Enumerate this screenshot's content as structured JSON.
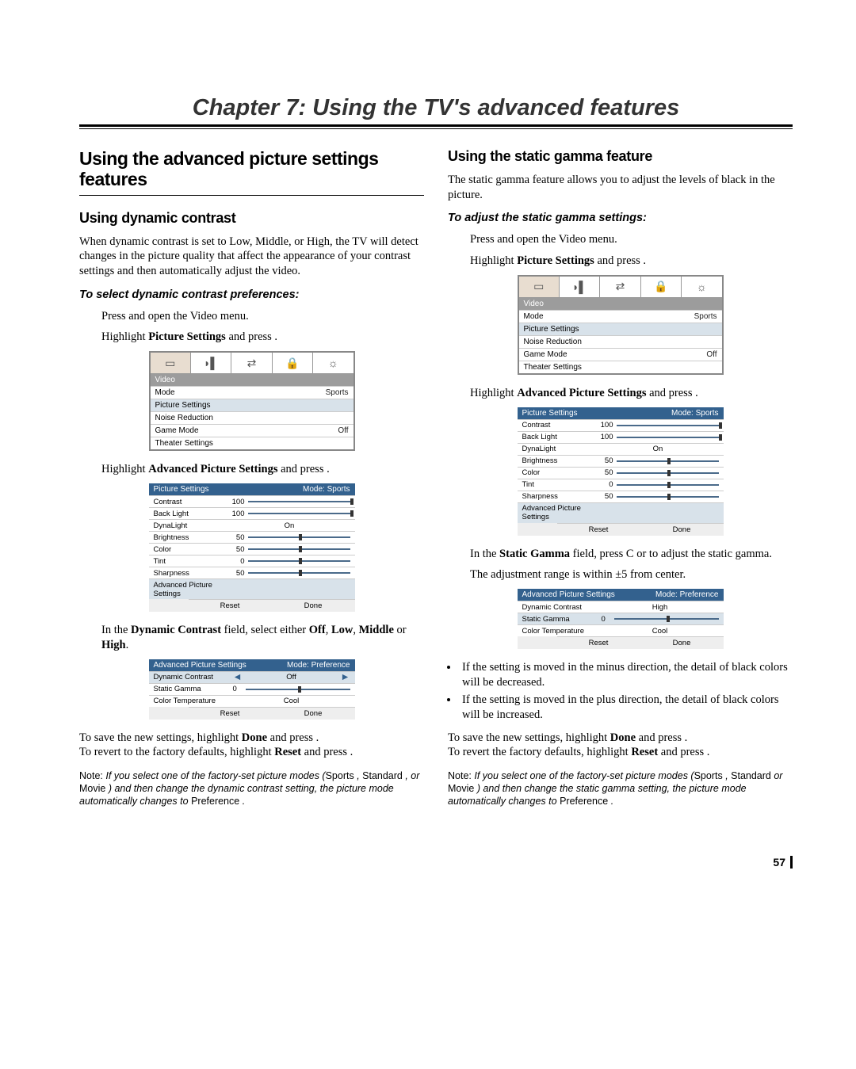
{
  "chapter": {
    "title": "Chapter 7: Using the TV's advanced features"
  },
  "left": {
    "h1": "Using the advanced picture settings features",
    "dc": {
      "h2": "Using dynamic contrast",
      "intro": "When dynamic contrast is set to Low, Middle, or High, the TV will detect changes in the picture quality that affect the appearance of your contrast settings and then automatically adjust the video.",
      "h3": "To select dynamic contrast preferences:",
      "step1": "Press     and open the  Video  menu.",
      "step2_a": "Highlight ",
      "step2_b": "Picture Settings",
      "step2_c": "   and press    .",
      "step3_a": "Highlight ",
      "step3_b": "Advanced Picture Settings",
      "step3_c": "   and press    .",
      "step4_a": "In the ",
      "step4_b": "Dynamic Contrast",
      "step4_c": "  field, select either ",
      "step4_d": "Off",
      "step4_e": ", ",
      "step4_f": "Low",
      "step4_g": ", ",
      "step4_h": "Middle",
      "step4_i": " or ",
      "step4_j": "High",
      "step4_k": ".",
      "save_a": "To save the new settings, highlight ",
      "save_b": "Done",
      "save_c": " and press     .",
      "revert_a": "To revert to the factory defaults, highlight ",
      "revert_b": "Reset",
      "revert_c": " and press    .",
      "note": "Note:  If you select one of the factory-set picture modes (Sports , Standard , or Movie ) and then change the dynamic contrast setting, the picture mode automatically changes to Preference ."
    }
  },
  "right": {
    "sg": {
      "h2": "Using the static gamma feature",
      "intro": "The static gamma feature allows you to adjust the levels of black in the picture.",
      "h3": "To adjust the static gamma settings:",
      "step1": "Press     and open the  Video  menu.",
      "step2_a": "Highlight ",
      "step2_b": "Picture Settings",
      "step2_c": "   and press    .",
      "step3_a": "Highlight ",
      "step3_b": "Advanced Picture Settings",
      "step3_c": "   and press    .",
      "step4_a": "In the ",
      "step4_b": "Static Gamma",
      "step4_c": "  field, press C or     to adjust the static gamma.",
      "range": "The adjustment range is within ±5 from center.",
      "bul1": "If the setting is moved in the minus direction, the detail of black colors will be decreased.",
      "bul2": "If the setting is moved in the plus direction, the detail of black colors will be increased.",
      "save_a": "To save the new settings, highlight ",
      "save_b": "Done",
      "save_c": " and press     .",
      "revert_a": "To revert the factory defaults, highlight ",
      "revert_b": "Reset",
      "revert_c": "  and press    .",
      "note": "Note:  If you select one of the factory-set picture modes (Sports , Standard  or Movie ) and then change the static gamma setting, the picture mode automatically changes to Preference ."
    }
  },
  "menu1": {
    "header": "Video",
    "rows": [
      {
        "label": "Mode",
        "val": "Sports",
        "hl": false
      },
      {
        "label": "Picture Settings",
        "val": "",
        "hl": true
      },
      {
        "label": "Noise Reduction",
        "val": "",
        "hl": false
      },
      {
        "label": "Game Mode",
        "val": "Off",
        "hl": false
      },
      {
        "label": "Theater Settings",
        "val": "",
        "hl": false
      }
    ]
  },
  "ps1": {
    "title": "Picture Settings",
    "mode": "Mode: Sports",
    "rows": [
      {
        "label": "Contrast",
        "val": "100",
        "knob": 100
      },
      {
        "label": "Back Light",
        "val": "100",
        "knob": 100
      },
      {
        "label": "DynaLight",
        "center": "On"
      },
      {
        "label": "Brightness",
        "val": "50",
        "knob": 50
      },
      {
        "label": "Color",
        "val": "50",
        "knob": 50
      },
      {
        "label": "Tint",
        "val": "0",
        "knob": 50
      },
      {
        "label": "Sharpness",
        "val": "50",
        "knob": 50
      }
    ],
    "aps": "Advanced Picture Settings",
    "reset": "Reset",
    "done": "Done"
  },
  "adv1": {
    "title": "Advanced Picture Settings",
    "mode": "Mode: Preference",
    "rows": [
      {
        "label": "Dynamic Contrast",
        "type": "arrows",
        "val": "Off",
        "hl": true
      },
      {
        "label": "Static Gamma",
        "type": "slider",
        "val": "0",
        "knob": 50,
        "hl": false
      },
      {
        "label": "Color Temperature",
        "type": "plain",
        "val": "Cool",
        "hl": false
      }
    ],
    "reset": "Reset",
    "done": "Done"
  },
  "adv2": {
    "title": "Advanced Picture Settings",
    "mode": "Mode: Preference",
    "rows": [
      {
        "label": "Dynamic Contrast",
        "type": "plain",
        "val": "High",
        "hl": false
      },
      {
        "label": "Static Gamma",
        "type": "slider",
        "val": "0",
        "knob": 50,
        "hl": true
      },
      {
        "label": "Color Temperature",
        "type": "plain",
        "val": "Cool",
        "hl": false
      }
    ],
    "reset": "Reset",
    "done": "Done"
  },
  "pageNum": "57"
}
